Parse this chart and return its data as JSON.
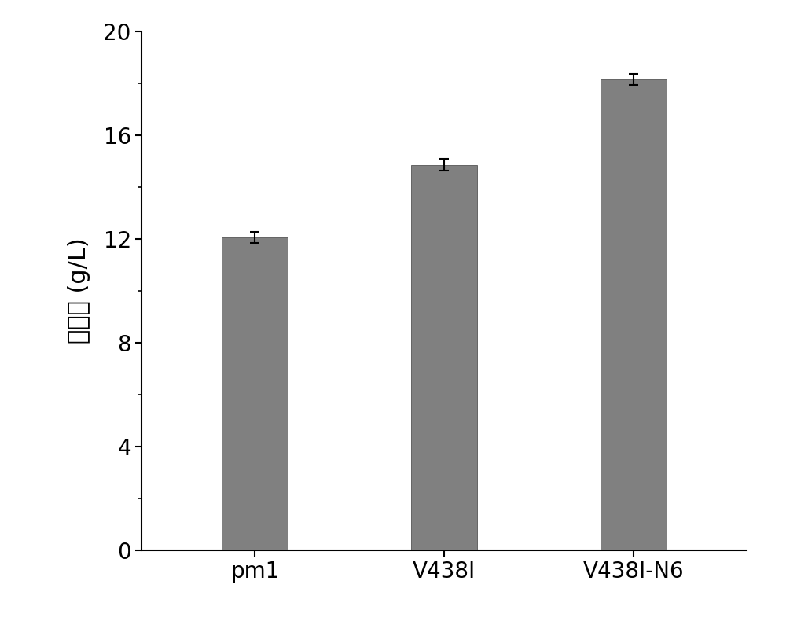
{
  "categories": [
    "pm1",
    "V438I",
    "V438I-N6"
  ],
  "values": [
    12.05,
    14.85,
    18.15
  ],
  "errors": [
    0.22,
    0.22,
    0.22
  ],
  "bar_color": "#808080",
  "bar_edgecolor": "#404040",
  "ylabel": "丙酮酸 (g/L)",
  "ylim": [
    0,
    20
  ],
  "yticks": [
    0,
    4,
    8,
    12,
    16,
    20
  ],
  "bar_width": 0.35,
  "tick_fontsize": 20,
  "label_fontsize": 22,
  "background_color": "#ffffff",
  "spine_linewidth": 1.5,
  "capsize": 4,
  "error_linewidth": 1.5
}
